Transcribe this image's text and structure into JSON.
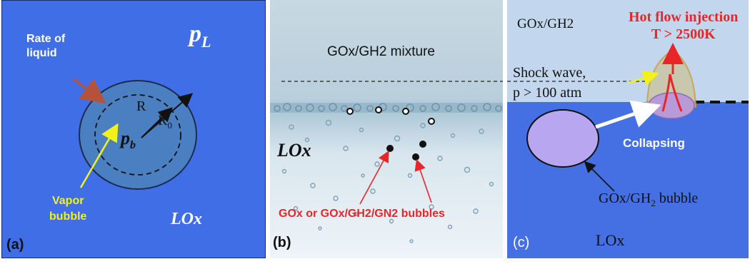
{
  "panel_a": {
    "tag": "(a)",
    "pressure_liquid": "p",
    "pressure_liquid_sub": "L",
    "rate_label_line1": "Rate of",
    "rate_label_line2": "liquid",
    "radius": "R",
    "radius0": "R",
    "radius0_sub": "0",
    "pressure_bubble": "p",
    "pressure_bubble_sub": "b",
    "vapor_line1": "Vapor",
    "vapor_line2": "bubble",
    "medium": "LOx",
    "colors": {
      "background": "#3f6ee6",
      "bubble": "#4a7fc2",
      "rate_arrow": "#b5533a",
      "vapor_arrow": "#f2f21a",
      "vapor_text": "#f2f21a"
    }
  },
  "panel_b": {
    "tag": "(b)",
    "mixture": "GOx/GH2 mixture",
    "medium": "LOx",
    "bubbles_label": "GOx or GOx/GH2/GN2 bubbles",
    "colors": {
      "bubbles_label": "#e8262a"
    }
  },
  "panel_c": {
    "tag": "(c)",
    "gas_top": "GOx/GH2",
    "hot_line1": "Hot flow injection",
    "hot_line2": "T > 2500K",
    "shock_line1": "Shock wave,",
    "shock_line2": "p > 100 atm",
    "collapsing": "Collapsing",
    "bubble_label_pre": "GOx/GH",
    "bubble_label_sub": "2",
    "bubble_label_post": " bubble",
    "medium": "LOx",
    "colors": {
      "gas_region": "#c2d6ee",
      "liquid": "#4470e3",
      "bubble": "#b9a6f0",
      "hot": "#e8262a"
    }
  }
}
